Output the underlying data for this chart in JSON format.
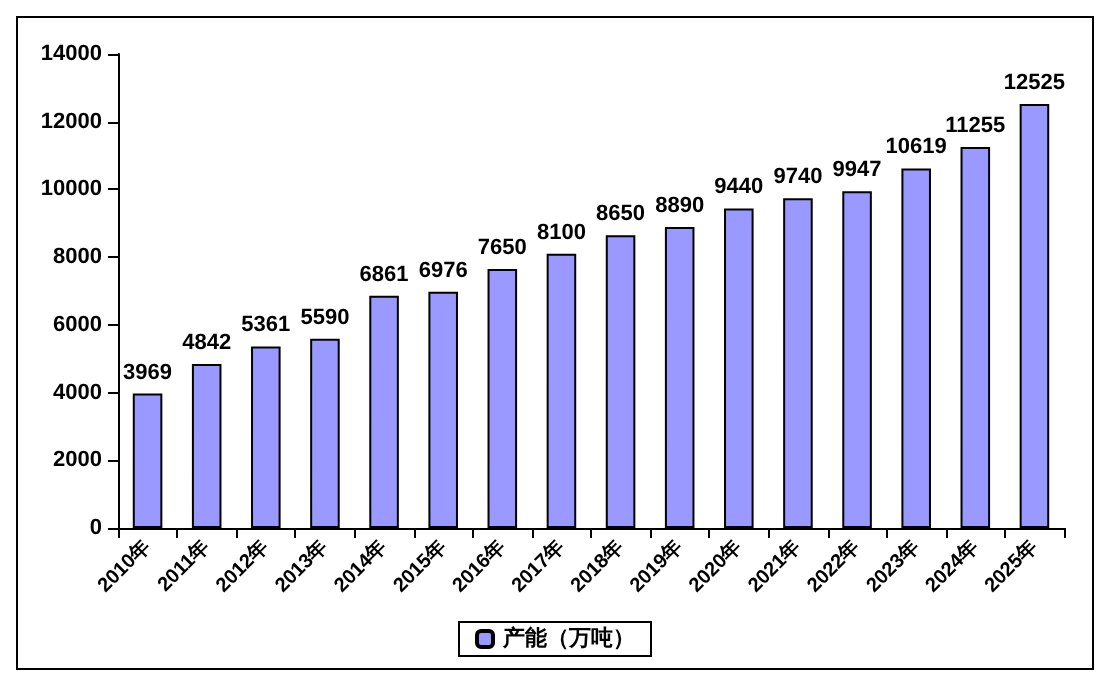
{
  "chart_data": {
    "type": "bar",
    "categories": [
      "2010年",
      "2011年",
      "2012年",
      "2013年",
      "2014年",
      "2015年",
      "2016年",
      "2017年",
      "2018年",
      "2019年",
      "2020年",
      "2021年",
      "2022年",
      "2023年",
      "2024年",
      "2025年"
    ],
    "series": [
      {
        "name": "产能（万吨）",
        "color": "#9999ff",
        "values": [
          3969,
          4842,
          5361,
          5590,
          6861,
          6976,
          7650,
          8100,
          8650,
          8890,
          9440,
          9740,
          9947,
          10619,
          11255,
          12525
        ]
      }
    ],
    "ylim": [
      0,
      14000
    ],
    "yticks": [
      0,
      2000,
      4000,
      6000,
      8000,
      10000,
      12000,
      14000
    ],
    "data_labels": true,
    "legend": "bottom",
    "grid": false
  }
}
